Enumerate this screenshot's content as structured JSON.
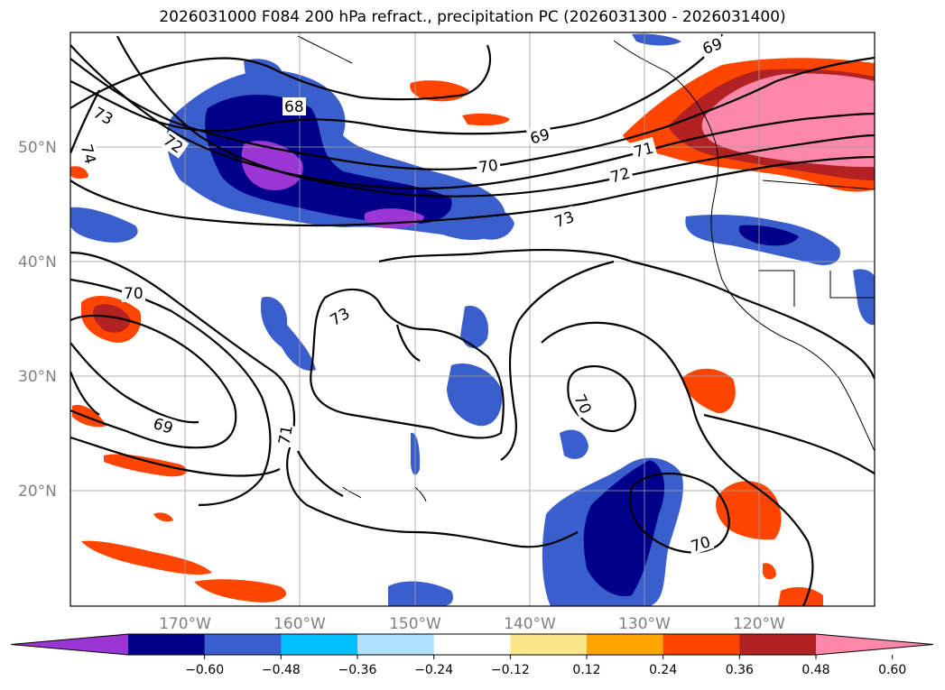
{
  "title": "2026031000 F084 200 hPa refract., precipitation PC (2026031300 - 2026031400)",
  "map": {
    "lat_labels": [
      "50°N",
      "40°N",
      "30°N",
      "20°N"
    ],
    "lon_labels": [
      "170°W",
      "160°W",
      "150°W",
      "140°W",
      "130°W",
      "120°W"
    ],
    "contour_labels": [
      "73",
      "74",
      "72",
      "68",
      "69",
      "70",
      "71",
      "72",
      "73",
      "70",
      "73",
      "69",
      "71",
      "70",
      "70",
      "69"
    ]
  },
  "colorbar": {
    "tick_labels": [
      "−0.60",
      "−0.48",
      "−0.36",
      "−0.24",
      "−0.12",
      "0.12",
      "0.24",
      "0.36",
      "0.48",
      "0.60"
    ],
    "colors": [
      "#9b35d4",
      "#00008b",
      "#3a5fcd",
      "#00bfff",
      "#b0e2ff",
      "#ffffff",
      "#fce68a",
      "#ffa500",
      "#ff4500",
      "#b22222",
      "#ff88aa"
    ]
  }
}
